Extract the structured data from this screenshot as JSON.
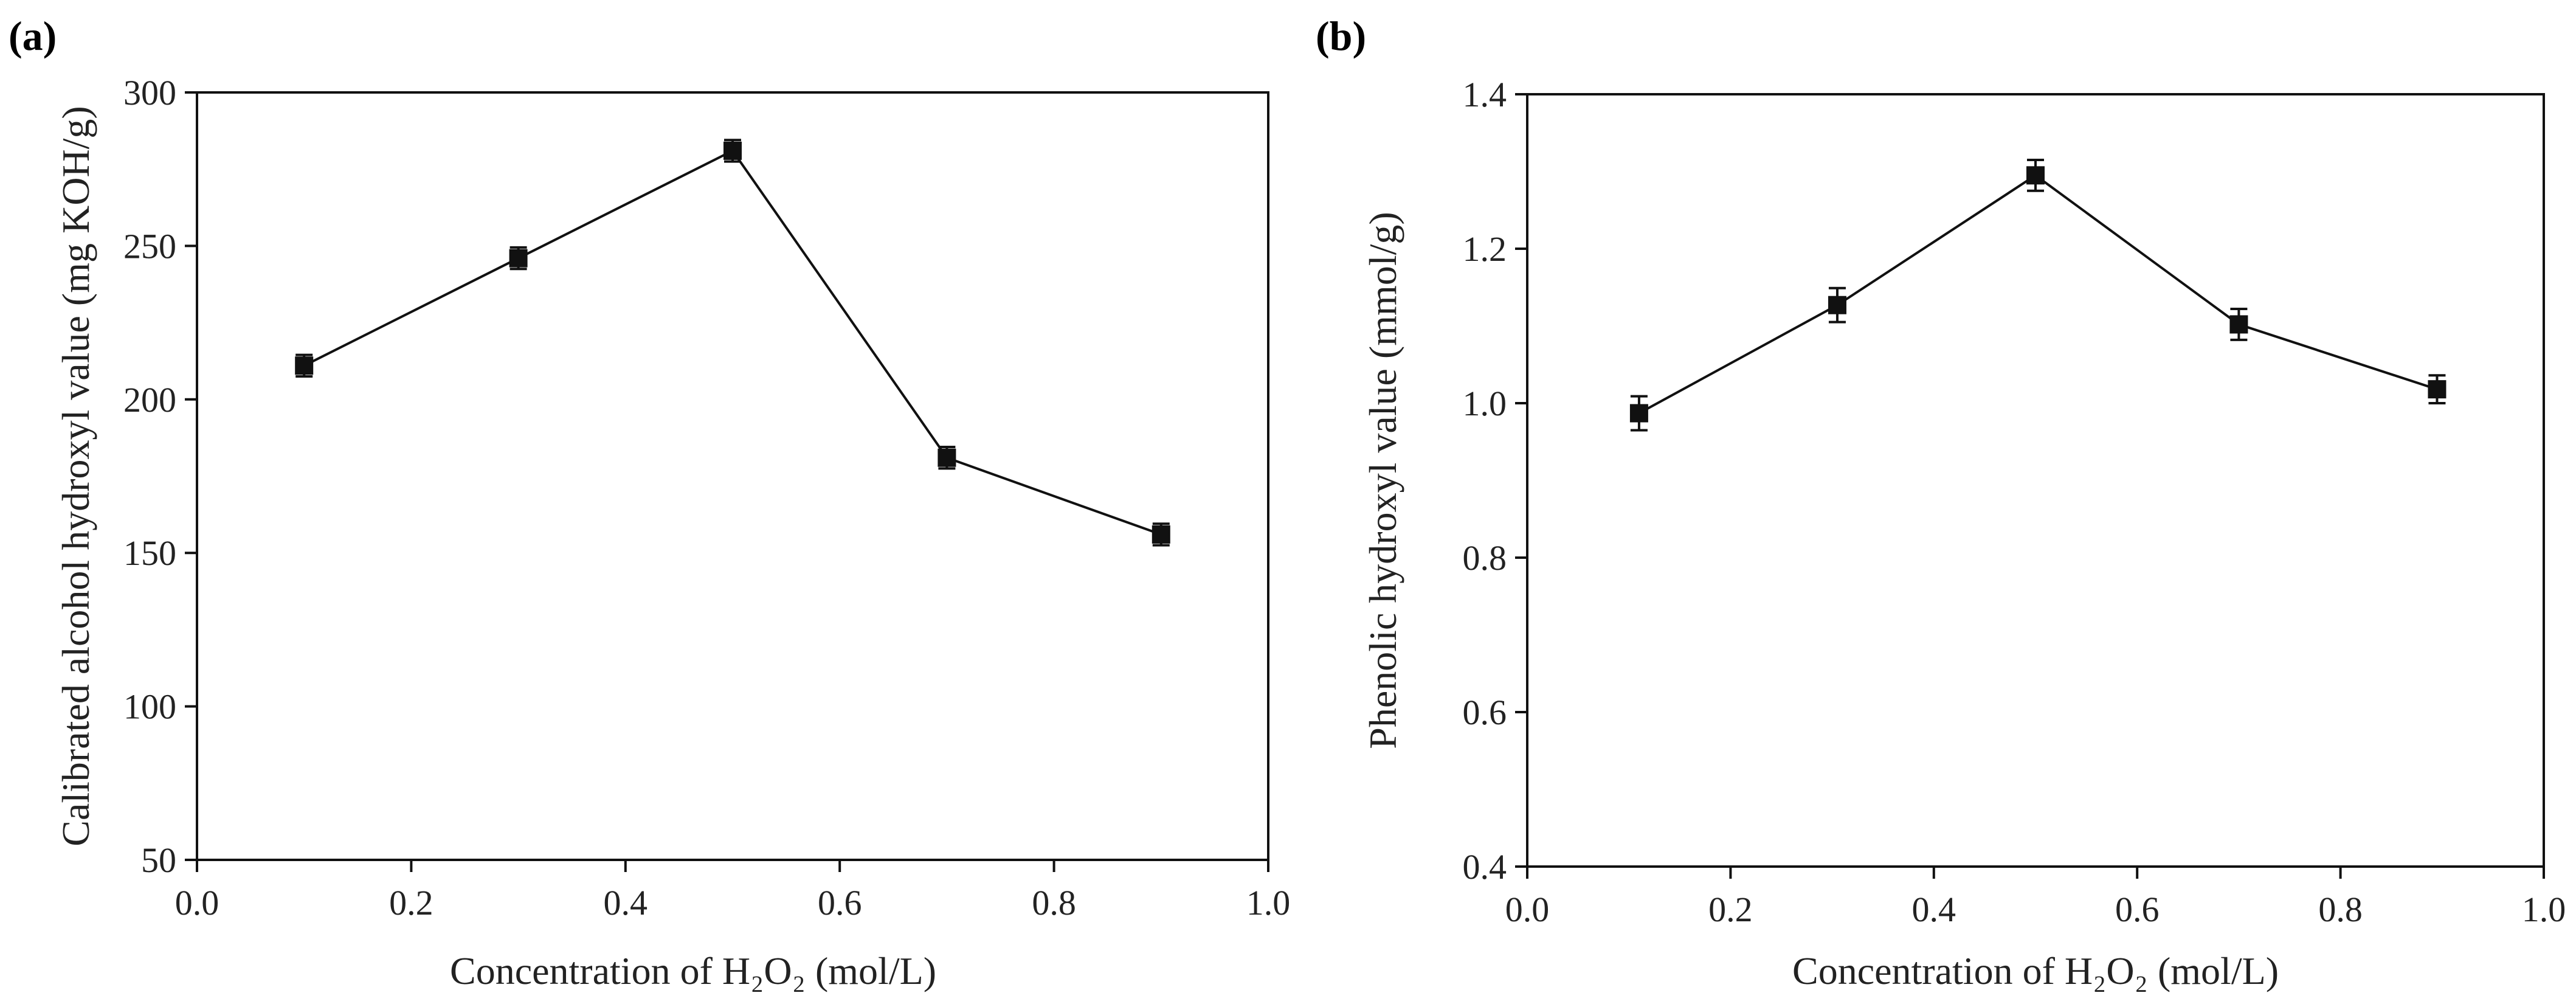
{
  "chart_data": [
    {
      "panel": "(a)",
      "type": "line",
      "title": "",
      "xlabel": "Concentration of H₂O₂ (mol/L)",
      "ylabel": "Calibrated alcohol hydroxyl value (mg KOH/g)",
      "xlim": [
        0.0,
        1.0
      ],
      "ylim": [
        50,
        300
      ],
      "xticks": [
        0.0,
        0.2,
        0.4,
        0.6,
        0.8,
        1.0
      ],
      "xtick_labels": [
        "0.0",
        "0.2",
        "0.4",
        "0.6",
        "0.8",
        "1.0"
      ],
      "yticks": [
        50,
        100,
        150,
        200,
        250,
        300
      ],
      "ytick_labels": [
        "50",
        "100",
        "150",
        "200",
        "250",
        "300"
      ],
      "series": [
        {
          "name": "alcohol hydroxyl value",
          "marker": "square",
          "x": [
            0.1,
            0.3,
            0.5,
            0.7,
            0.9
          ],
          "y": [
            211,
            246,
            281,
            181,
            156
          ],
          "err": [
            3.5,
            3.5,
            3.5,
            3.5,
            3.5
          ]
        }
      ]
    },
    {
      "panel": "(b)",
      "type": "line",
      "title": "",
      "xlabel": "Concentration of H₂O₂ (mol/L)",
      "ylabel": "Phenolic hydroxyl value (mmol/g)",
      "xlim": [
        0.0,
        1.0
      ],
      "ylim": [
        0.4,
        1.4
      ],
      "xticks": [
        0.0,
        0.2,
        0.4,
        0.6,
        0.8,
        1.0
      ],
      "xtick_labels": [
        "0.0",
        "0.2",
        "0.4",
        "0.6",
        "0.8",
        "1.0"
      ],
      "yticks": [
        0.4,
        0.6,
        0.8,
        1.0,
        1.2,
        1.4
      ],
      "ytick_labels": [
        "0.4",
        "0.6",
        "0.8",
        "1.0",
        "1.2",
        "1.4"
      ],
      "series": [
        {
          "name": "phenolic hydroxyl value",
          "marker": "square",
          "x": [
            0.11,
            0.305,
            0.5,
            0.7,
            0.895
          ],
          "y": [
            0.987,
            1.127,
            1.295,
            1.102,
            1.018
          ],
          "err": [
            0.022,
            0.022,
            0.02,
            0.02,
            0.018
          ]
        }
      ]
    }
  ]
}
